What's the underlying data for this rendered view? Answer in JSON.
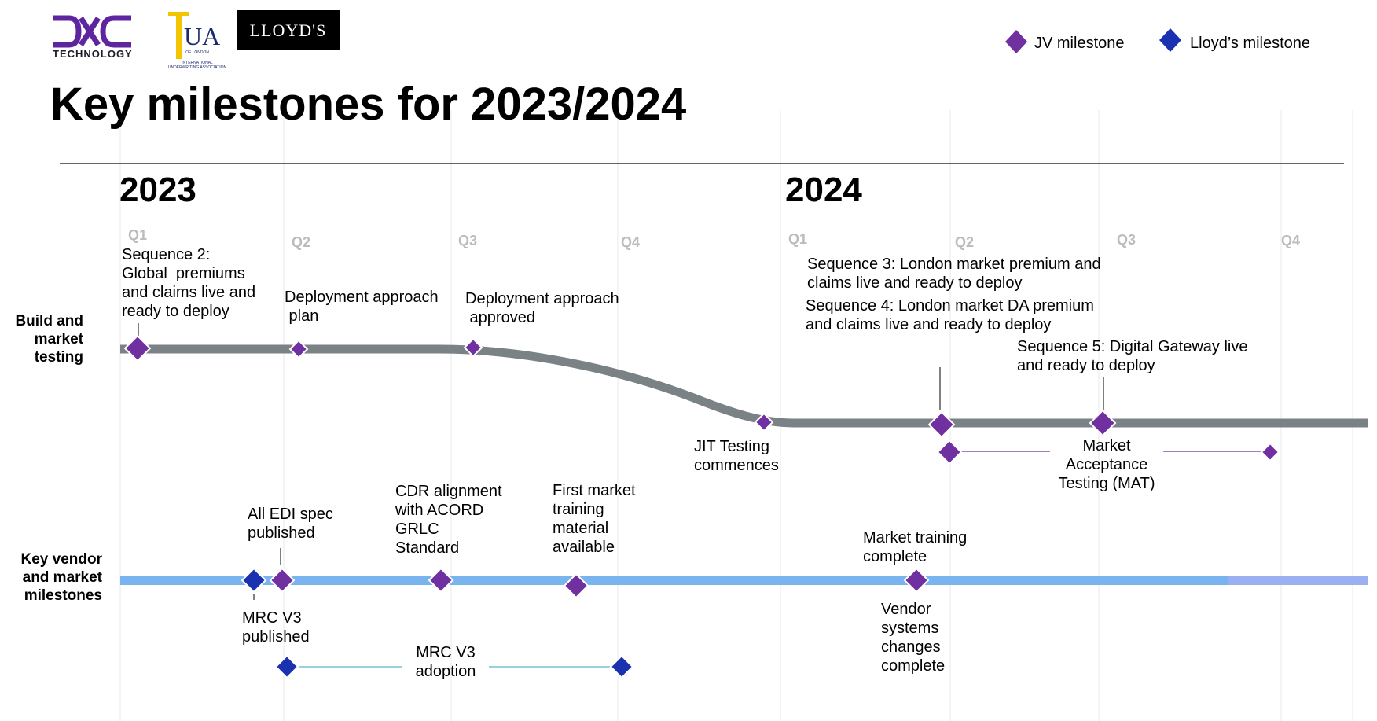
{
  "logos": {
    "dxc_text": "TECHNOLOGY",
    "ua_text": "UA",
    "ua_subtitle_1": "OF LONDON",
    "ua_subtitle_2": "INTERNATIONAL",
    "ua_subtitle_3": "UNDERWRITING ASSOCIATION",
    "lloyds_text": "LLOYD'S"
  },
  "legend": {
    "jv": "JV milestone",
    "lloyds": "Lloyd’s milestone"
  },
  "title": "Key milestones for 2023/2024",
  "years": {
    "y2023": "2023",
    "y2024": "2024"
  },
  "quarters": [
    "Q1",
    "Q2",
    "Q3",
    "Q4",
    "Q1",
    "Q2",
    "Q3",
    "Q4"
  ],
  "rows": {
    "build": "Build and\nmarket\ntesting",
    "vendor": "Key vendor\nand market\nmilestones"
  },
  "milestones": {
    "seq2": "Sequence 2:\nGlobal  premiums\nand claims live and\nready to deploy",
    "deploy_plan": "Deployment approach\n plan",
    "deploy_approved": "Deployment approach\n approved",
    "jit": "JIT Testing\ncommences",
    "seq3": "Sequence 3: London market premium and\nclaims live and ready to deploy",
    "seq4": "Sequence 4: London market DA premium\nand claims live and ready to deploy",
    "seq5": "Sequence 5: Digital Gateway live\nand ready to deploy",
    "mat": "Market\nAcceptance\nTesting (MAT)",
    "edi": "All EDI spec\npublished",
    "cdr": "CDR alignment\nwith ACORD\nGRLC\nStandard",
    "first_training": "First market\ntraining\nmaterial\navailable",
    "training_complete": "Market training\ncomplete",
    "mrc_published": "MRC V3\npublished",
    "mrc_adoption": "MRC V3\nadoption",
    "vendor_complete": "Vendor\nsystems\nchanges\ncomplete"
  },
  "colors": {
    "jv": "#7030a0",
    "lloyds": "#1a32b0",
    "build_track": "#7a8286",
    "vendor_track": "#7ab4ee",
    "connector": "#5bb5c9"
  }
}
